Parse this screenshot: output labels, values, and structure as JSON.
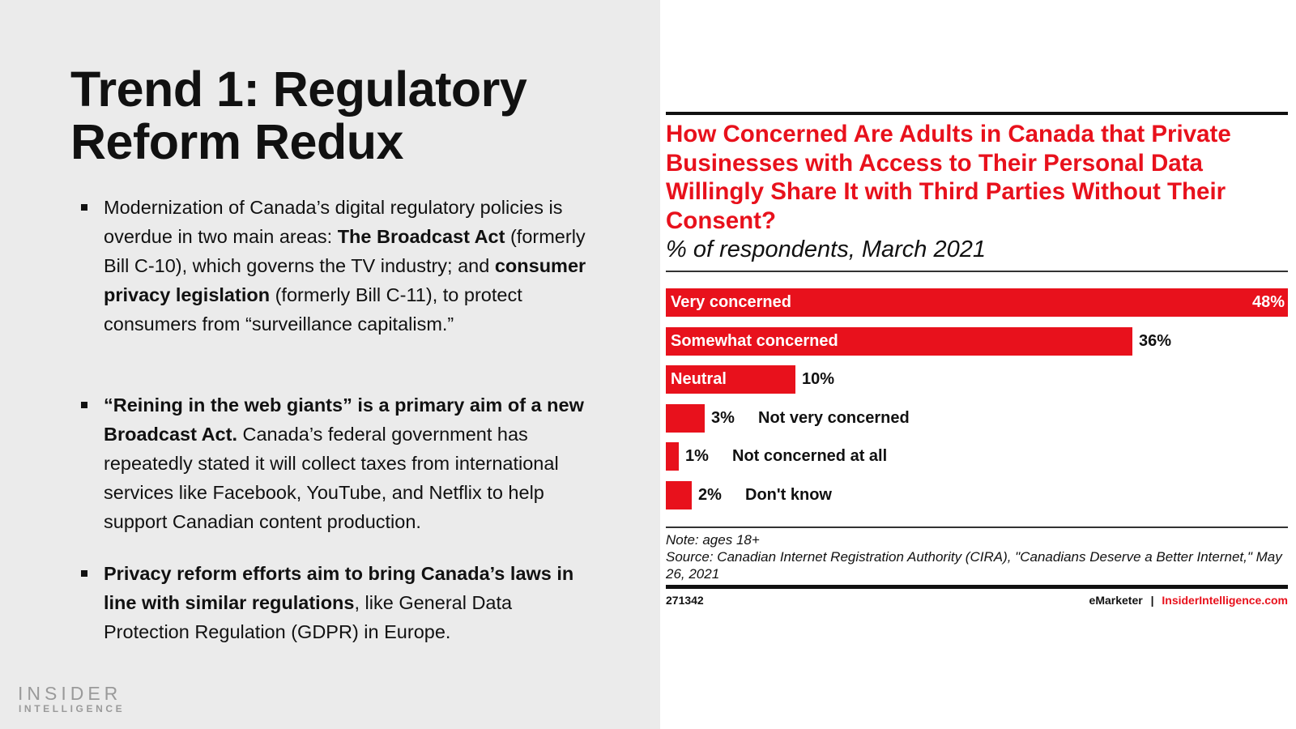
{
  "slide": {
    "title_lines": [
      "Trend 1: Regulatory",
      "Reform Redux"
    ],
    "bullets": [
      {
        "parts": [
          {
            "text": "Modernization of Canada’s digital regulatory policies is overdue in two main areas: ",
            "bold": false
          },
          {
            "text": "The Broadcast Act",
            "bold": true
          },
          {
            "text": " (formerly Bill C-10), which governs the TV industry; and ",
            "bold": false
          },
          {
            "text": "consumer privacy legislation",
            "bold": true
          },
          {
            "text": " (formerly Bill C-11), to protect consumers from “surveillance capitalism.”",
            "bold": false
          }
        ]
      },
      {
        "parts": [
          {
            "text": "“Reining in the web giants” is a primary aim of a new Broadcast Act.",
            "bold": true
          },
          {
            "text": " Canada’s federal government has repeatedly stated it will collect taxes from international services like Facebook, YouTube, and Netflix to help support Canadian content production.",
            "bold": false
          }
        ]
      },
      {
        "parts": [
          {
            "text": "Privacy reform efforts aim to bring Canada’s laws in line with similar regulations",
            "bold": true
          },
          {
            "text": ", like General Data Protection Regulation (GDPR) in Europe.",
            "bold": false
          }
        ]
      }
    ],
    "logo": {
      "line1": "INSIDER",
      "line2": "INTELLIGENCE"
    }
  },
  "chart_data": {
    "type": "bar",
    "orientation": "horizontal",
    "title": "How Concerned Are Adults in Canada that Private Businesses with Access to Their Personal Data Willingly Share It with Third Parties Without Their Consent?",
    "subtitle": "% of respondents, March 2021",
    "categories": [
      "Very concerned",
      "Somewhat concerned",
      "Neutral",
      "Not very concerned",
      "Not concerned at all",
      "Don't know"
    ],
    "values": [
      48,
      36,
      10,
      3,
      1,
      2
    ],
    "value_labels": [
      "48%",
      "36%",
      "10%",
      "3%",
      "1%",
      "2%"
    ],
    "xlim": [
      0,
      48
    ],
    "grid": false,
    "bar_color": "#e8111c",
    "note": "Note: ages 18+",
    "source": "Source: Canadian Internet Registration Authority (CIRA), \"Canadians Deserve a Better Internet,\" May 26, 2021",
    "chart_id": "271342",
    "brand": "eMarketer",
    "separator": "|",
    "site": "InsiderIntelligence.com"
  }
}
